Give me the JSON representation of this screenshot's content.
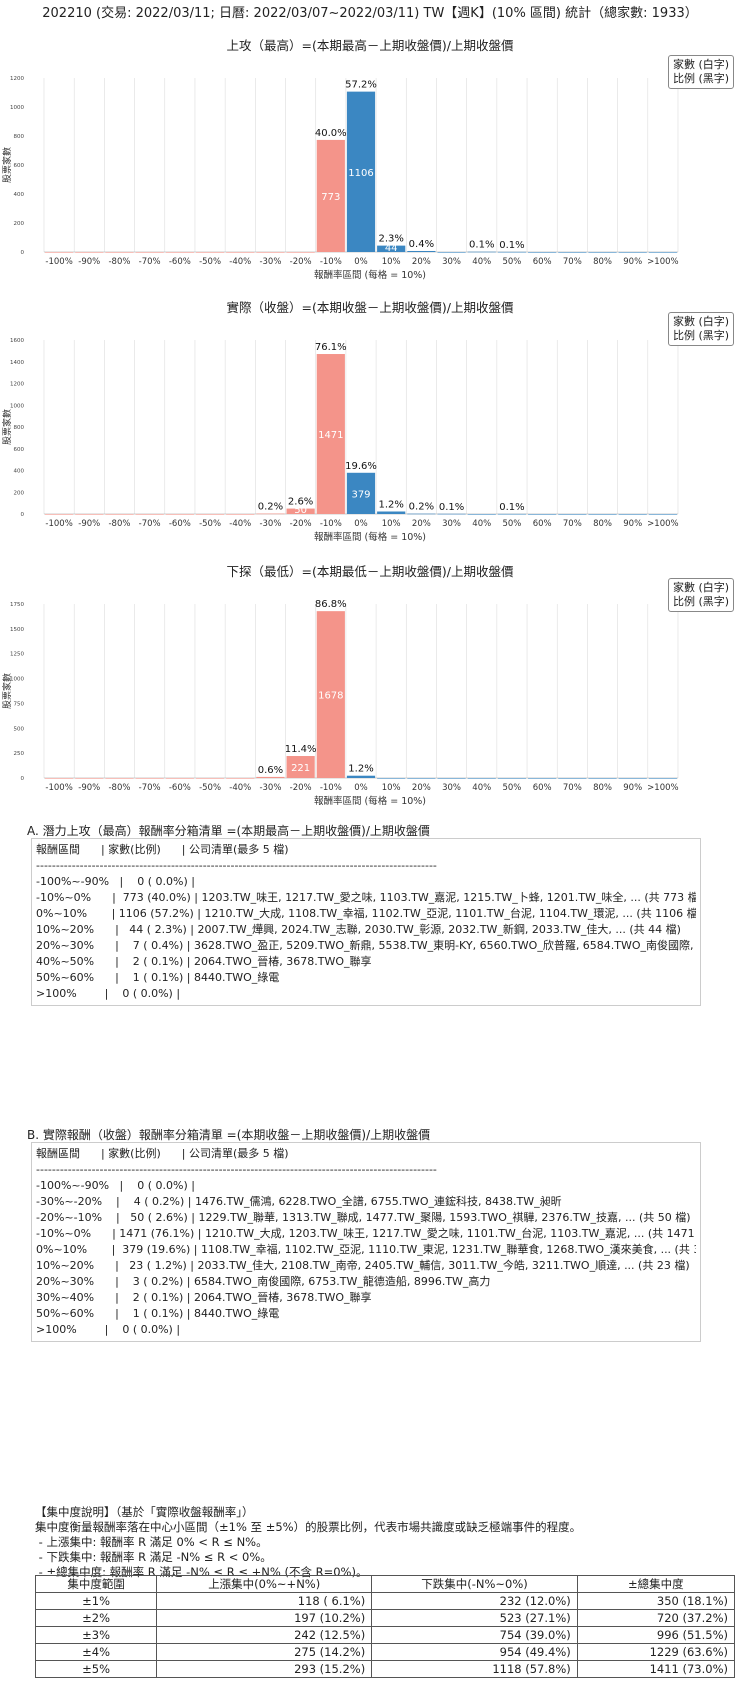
{
  "header": {
    "title": "202210 (交易: 2022/03/11; 日曆: 2022/03/07~2022/03/11) TW【週K】(10% 區間) 統計（總家數: 1933）"
  },
  "colors": {
    "negative": "#f4948a",
    "positive": "#3b87c2",
    "grid": "#dddddd"
  },
  "legend": {
    "line1": "家數 (白字)",
    "line2": "比例 (黑字)"
  },
  "chart_data": [
    {
      "type": "bar",
      "title": "上攻（最高）=(本期最高－上期收盤價)/上期收盤價",
      "xlabel": "報酬率區間 (每格 = 10%)",
      "ylabel": "股票家數",
      "categories": [
        "-100%",
        "-90%",
        "-80%",
        "-70%",
        "-60%",
        "-50%",
        "-40%",
        "-30%",
        "-20%",
        "-10%",
        "0%",
        "10%",
        "20%",
        "30%",
        "40%",
        "50%",
        "60%",
        "70%",
        "80%",
        "90%",
        ">100%"
      ],
      "values": [
        0,
        0,
        0,
        0,
        0,
        0,
        0,
        0,
        0,
        773,
        1106,
        44,
        7,
        0,
        2,
        1,
        0,
        0,
        0,
        0,
        0
      ],
      "percent_labels": [
        "",
        "",
        "",
        "",
        "",
        "",
        "",
        "",
        "",
        "40.0%",
        "57.2%",
        "2.3%",
        "0.4%",
        "",
        "0.1%",
        "0.1%",
        "",
        "",
        "",
        "",
        ""
      ],
      "ylim": [
        0,
        1200
      ],
      "yticks": [
        0,
        200,
        400,
        600,
        800,
        1000,
        1200
      ]
    },
    {
      "type": "bar",
      "title": "實際（收盤）=(本期收盤－上期收盤價)/上期收盤價",
      "xlabel": "報酬率區間 (每格 = 10%)",
      "ylabel": "股票家數",
      "categories": [
        "-100%",
        "-90%",
        "-80%",
        "-70%",
        "-60%",
        "-50%",
        "-40%",
        "-30%",
        "-20%",
        "-10%",
        "0%",
        "10%",
        "20%",
        "30%",
        "40%",
        "50%",
        "60%",
        "70%",
        "80%",
        "90%",
        ">100%"
      ],
      "values": [
        0,
        0,
        0,
        0,
        0,
        0,
        0,
        4,
        50,
        1471,
        379,
        23,
        3,
        2,
        0,
        1,
        0,
        0,
        0,
        0,
        0
      ],
      "percent_labels": [
        "",
        "",
        "",
        "",
        "",
        "",
        "",
        "0.2%",
        "2.6%",
        "76.1%",
        "19.6%",
        "1.2%",
        "0.2%",
        "0.1%",
        "",
        "0.1%",
        "",
        "",
        "",
        "",
        ""
      ],
      "ylim": [
        0,
        1600
      ],
      "yticks": [
        0,
        200,
        400,
        600,
        800,
        1000,
        1200,
        1400,
        1600
      ]
    },
    {
      "type": "bar",
      "title": "下探（最低）=(本期最低－上期收盤價)/上期收盤價",
      "xlabel": "報酬率區間 (每格 = 10%)",
      "ylabel": "股票家數",
      "categories": [
        "-100%",
        "-90%",
        "-80%",
        "-70%",
        "-60%",
        "-50%",
        "-40%",
        "-30%",
        "-20%",
        "-10%",
        "0%",
        "10%",
        "20%",
        "30%",
        "40%",
        "50%",
        "60%",
        "70%",
        "80%",
        "90%",
        ">100%"
      ],
      "values": [
        0,
        0,
        0,
        0,
        0,
        0,
        0,
        11,
        221,
        1678,
        23,
        0,
        0,
        0,
        0,
        0,
        0,
        0,
        0,
        0,
        0
      ],
      "percent_labels": [
        "",
        "",
        "",
        "",
        "",
        "",
        "",
        "0.6%",
        "11.4%",
        "86.8%",
        "1.2%",
        "",
        "",
        "",
        "",
        "",
        "",
        "",
        "",
        "",
        ""
      ],
      "ylim": [
        0,
        1750
      ],
      "yticks": [
        0,
        250,
        500,
        750,
        1000,
        1250,
        1500,
        1750
      ]
    }
  ],
  "section_a": {
    "title": "A. 潛力上攻（最高）報酬率分箱清單 =(本期最高－上期收盤價)/上期收盤價",
    "lines": [
      "報酬區間      | 家數(比例)      | 公司清單(最多 5 檔)",
      "-----------------------------------------------------------------------------------------------------",
      "-100%~-90%   |    0 ( 0.0%) |",
      "-10%~0%      |  773 (40.0%) | 1203.TW_味王, 1217.TW_愛之味, 1103.TW_嘉泥, 1215.TW_卜蜂, 1201.TW_味全, ... (共 773 檔)",
      "0%~10%       | 1106 (57.2%) | 1210.TW_大成, 1108.TW_幸福, 1102.TW_亞泥, 1101.TW_台泥, 1104.TW_環泥, ... (共 1106 檔)",
      "10%~20%      |   44 ( 2.3%) | 2007.TW_燁興, 2024.TW_志聯, 2030.TW_彰源, 2032.TW_新鋼, 2033.TW_佳大, ... (共 44 檔)",
      "20%~30%      |    7 ( 0.4%) | 3628.TWO_盈正, 5209.TWO_新鼎, 5538.TW_東明-KY, 6560.TWO_欣普羅, 6584.TWO_南俊國際, ... (共 7 檔)",
      "40%~50%      |    2 ( 0.1%) | 2064.TWO_晉椿, 3678.TWO_聯享",
      "50%~60%      |    1 ( 0.1%) | 8440.TWO_綠電",
      ">100%        |    0 ( 0.0%) |"
    ]
  },
  "section_b": {
    "title": "B. 實際報酬（收盤）報酬率分箱清單 =(本期收盤－上期收盤價)/上期收盤價",
    "lines": [
      "報酬區間      | 家數(比例)      | 公司清單(最多 5 檔)",
      "-----------------------------------------------------------------------------------------------------",
      "-100%~-90%   |    0 ( 0.0%) |",
      "-30%~-20%    |    4 ( 0.2%) | 1476.TW_儒鴻, 6228.TWO_全譜, 6755.TWO_連鋐科技, 8438.TW_昶昕",
      "-20%~-10%    |   50 ( 2.6%) | 1229.TW_聯華, 1313.TW_聯成, 1477.TW_聚陽, 1593.TWO_祺驊, 2376.TW_技嘉, ... (共 50 檔)",
      "-10%~0%      | 1471 (76.1%) | 1210.TW_大成, 1203.TW_味王, 1217.TW_愛之味, 1101.TW_台泥, 1103.TW_嘉泥, ... (共 1471 檔)",
      "0%~10%       |  379 (19.6%) | 1108.TW_幸福, 1102.TW_亞泥, 1110.TW_東泥, 1231.TW_聯華食, 1268.TWO_漢來美食, ... (共 379 檔)",
      "10%~20%      |   23 ( 1.2%) | 2033.TW_佳大, 2108.TW_南帝, 2405.TW_輔信, 3011.TW_今皓, 3211.TWO_順達, ... (共 23 檔)",
      "20%~30%      |    3 ( 0.2%) | 6584.TWO_南俊國際, 6753.TW_龍德造船, 8996.TW_高力",
      "30%~40%      |    2 ( 0.1%) | 2064.TWO_晉椿, 3678.TWO_聯享",
      "50%~60%      |    1 ( 0.1%) | 8440.TWO_綠電",
      ">100%        |    0 ( 0.0%) |"
    ]
  },
  "concentration": {
    "lines": [
      "【集中度說明】（基於「實際收盤報酬率」）",
      "集中度衡量報酬率落在中心小區間（±1% 至 ±5%）的股票比例，代表市場共識度或缺乏極端事件的程度。",
      " - 上漲集中: 報酬率 R 滿足 0% < R ≤ N%。",
      " - 下跌集中: 報酬率 R 滿足 -N% ≤ R < 0%。",
      " - ±總集中度: 報酬率 R 滿足 -N% ≤ R ≤ +N% (不含 R=0%)。"
    ],
    "headers": [
      "集中度範圍",
      "上漲集中(0%~+N%)",
      "下跌集中(-N%~0%)",
      "±總集中度"
    ],
    "rows": [
      [
        "±1%",
        "118 ( 6.1%)",
        "232 (12.0%)",
        "350 (18.1%)"
      ],
      [
        "±2%",
        "197 (10.2%)",
        "523 (27.1%)",
        "720 (37.2%)"
      ],
      [
        "±3%",
        "242 (12.5%)",
        "754 (39.0%)",
        "996 (51.5%)"
      ],
      [
        "±4%",
        "275 (14.2%)",
        "954 (49.4%)",
        "1229 (63.6%)"
      ],
      [
        "±5%",
        "293 (15.2%)",
        "1118 (57.8%)",
        "1411 (73.0%)"
      ]
    ]
  }
}
